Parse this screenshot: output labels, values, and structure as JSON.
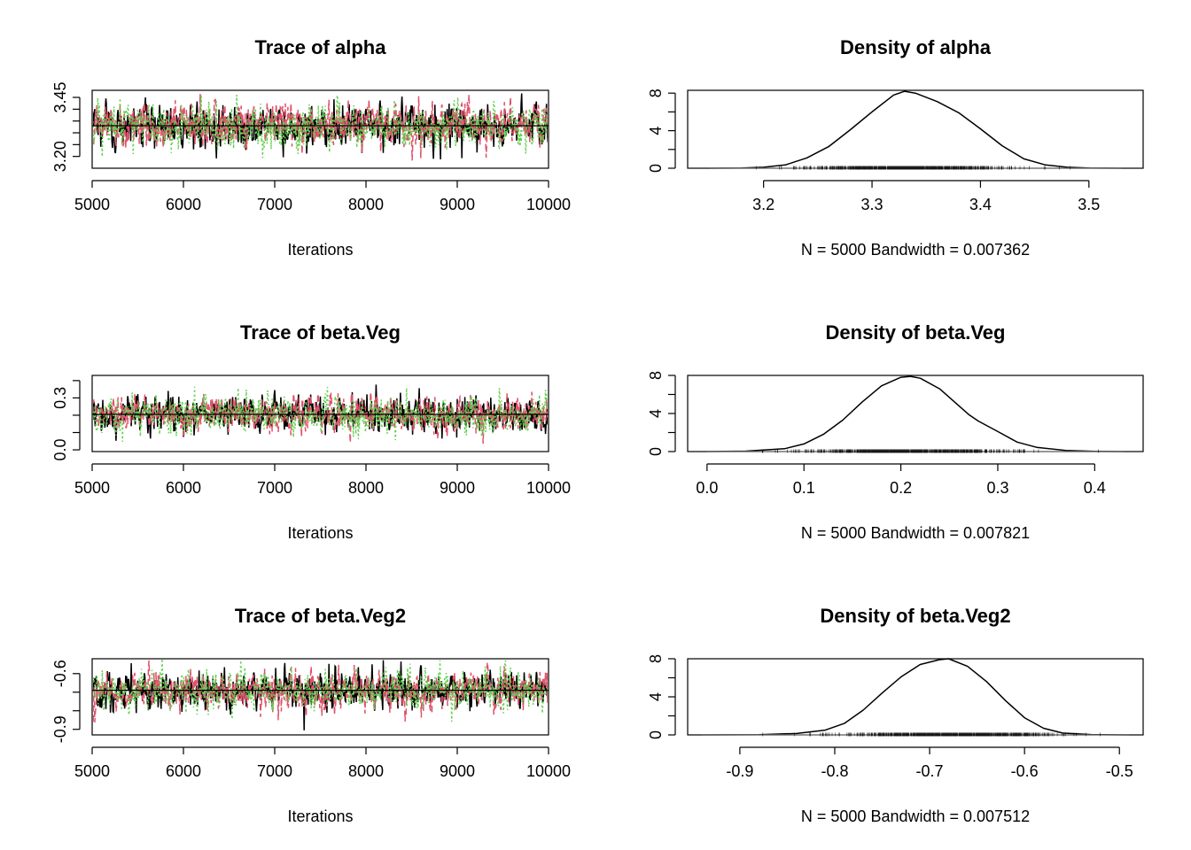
{
  "colors": {
    "chain1": "#000000",
    "chain2": "#DF536B",
    "chain3": "#61D04F",
    "frame": "#000000",
    "rug": "#000000"
  },
  "chart_data": [
    {
      "type": "line",
      "kind": "trace",
      "title": "Trace of alpha",
      "xlabel": "Iterations",
      "xlim": [
        5000,
        10000
      ],
      "ylim": [
        3.15,
        3.48
      ],
      "xticks": [
        "5000",
        "6000",
        "7000",
        "8000",
        "9000",
        "10000"
      ],
      "xtick_values": [
        5000,
        6000,
        7000,
        8000,
        9000,
        10000
      ],
      "yticks": [
        "3.20",
        "3.45"
      ],
      "ytick_values": [
        3.2,
        3.45
      ],
      "yminor_values": [
        3.25,
        3.3,
        3.35,
        3.4
      ],
      "series": [
        {
          "chain": 1,
          "mean": 3.33,
          "sd": 0.045
        },
        {
          "chain": 2,
          "mean": 3.33,
          "sd": 0.045
        },
        {
          "chain": 3,
          "mean": 3.33,
          "sd": 0.045
        }
      ],
      "mean_line": 3.33
    },
    {
      "type": "line",
      "kind": "density",
      "title": "Density of alpha",
      "xlabel": "N = 5000   Bandwidth = 0.007362",
      "xlim": [
        3.13,
        3.55
      ],
      "ylim": [
        0,
        8.3
      ],
      "xticks": [
        "3.2",
        "3.3",
        "3.4",
        "3.5"
      ],
      "xtick_values": [
        3.2,
        3.3,
        3.4,
        3.5
      ],
      "yticks": [
        "0",
        "4",
        "8"
      ],
      "ytick_values": [
        0,
        4,
        8
      ],
      "yminor_values": [
        2,
        6
      ],
      "curve": {
        "x": [
          3.15,
          3.18,
          3.2,
          3.22,
          3.24,
          3.26,
          3.28,
          3.3,
          3.32,
          3.33,
          3.34,
          3.36,
          3.38,
          3.4,
          3.42,
          3.44,
          3.46,
          3.48,
          3.5,
          3.53
        ],
        "y": [
          0,
          0.02,
          0.1,
          0.35,
          1.1,
          2.3,
          4.1,
          6.0,
          7.8,
          8.2,
          8.0,
          7.1,
          5.9,
          4.2,
          2.4,
          1.0,
          0.35,
          0.1,
          0.02,
          0
        ]
      },
      "rug_range": [
        3.15,
        3.53
      ]
    },
    {
      "type": "line",
      "kind": "trace",
      "title": "Trace of beta.Veg",
      "xlabel": "Iterations",
      "xlim": [
        5000,
        10000
      ],
      "ylim": [
        -0.01,
        0.43
      ],
      "xticks": [
        "5000",
        "6000",
        "7000",
        "8000",
        "9000",
        "10000"
      ],
      "xtick_values": [
        5000,
        6000,
        7000,
        8000,
        9000,
        10000
      ],
      "yticks": [
        "0.0",
        "0.3"
      ],
      "ytick_values": [
        0.0,
        0.3
      ],
      "yminor_values": [
        0.1,
        0.2,
        0.4
      ],
      "series": [
        {
          "chain": 1,
          "mean": 0.205,
          "sd": 0.05
        },
        {
          "chain": 2,
          "mean": 0.205,
          "sd": 0.05
        },
        {
          "chain": 3,
          "mean": 0.205,
          "sd": 0.05
        }
      ],
      "mean_line": 0.205
    },
    {
      "type": "line",
      "kind": "density",
      "title": "Density of beta.Veg",
      "xlabel": "N = 5000   Bandwidth = 0.007821",
      "xlim": [
        -0.02,
        0.45
      ],
      "ylim": [
        0,
        8.0
      ],
      "xticks": [
        "0.0",
        "0.1",
        "0.2",
        "0.3",
        "0.4"
      ],
      "xtick_values": [
        0.0,
        0.1,
        0.2,
        0.3,
        0.4
      ],
      "yticks": [
        "0",
        "4",
        "8"
      ],
      "ytick_values": [
        0,
        4,
        8
      ],
      "yminor_values": [
        2,
        6
      ],
      "curve": {
        "x": [
          0.0,
          0.04,
          0.08,
          0.1,
          0.12,
          0.14,
          0.16,
          0.18,
          0.2,
          0.21,
          0.22,
          0.24,
          0.26,
          0.27,
          0.28,
          0.3,
          0.32,
          0.34,
          0.37,
          0.4,
          0.43
        ],
        "y": [
          0,
          0.05,
          0.3,
          0.8,
          1.8,
          3.3,
          5.2,
          6.9,
          7.8,
          7.9,
          7.7,
          6.6,
          4.8,
          3.9,
          3.2,
          2.1,
          1.0,
          0.45,
          0.12,
          0.03,
          0
        ]
      },
      "rug_range": [
        0.0,
        0.43
      ]
    },
    {
      "type": "line",
      "kind": "trace",
      "title": "Trace of beta.Veg2",
      "xlabel": "Iterations",
      "xlim": [
        5000,
        10000
      ],
      "ylim": [
        -0.93,
        -0.52
      ],
      "xticks": [
        "5000",
        "6000",
        "7000",
        "8000",
        "9000",
        "10000"
      ],
      "xtick_values": [
        5000,
        6000,
        7000,
        8000,
        9000,
        10000
      ],
      "yticks": [
        "-0.9",
        "-0.6"
      ],
      "ytick_values": [
        -0.9,
        -0.6
      ],
      "yminor_values": [
        -0.8,
        -0.7
      ],
      "series": [
        {
          "chain": 1,
          "mean": -0.69,
          "sd": 0.05
        },
        {
          "chain": 2,
          "mean": -0.69,
          "sd": 0.05
        },
        {
          "chain": 3,
          "mean": -0.69,
          "sd": 0.05
        }
      ],
      "mean_line": -0.69
    },
    {
      "type": "line",
      "kind": "density",
      "title": "Density of beta.Veg2",
      "xlabel": "N = 5000   Bandwidth = 0.007512",
      "xlim": [
        -0.955,
        -0.475
      ],
      "ylim": [
        0,
        8.0
      ],
      "xticks": [
        "-0.9",
        "-0.8",
        "-0.7",
        "-0.6",
        "-0.5"
      ],
      "xtick_values": [
        -0.9,
        -0.8,
        -0.7,
        -0.6,
        -0.5
      ],
      "yticks": [
        "0",
        "4",
        "8"
      ],
      "ytick_values": [
        0,
        4,
        8
      ],
      "yminor_values": [
        2,
        6
      ],
      "curve": {
        "x": [
          -0.94,
          -0.88,
          -0.84,
          -0.81,
          -0.79,
          -0.77,
          -0.75,
          -0.73,
          -0.71,
          -0.69,
          -0.68,
          -0.66,
          -0.64,
          -0.62,
          -0.6,
          -0.58,
          -0.56,
          -0.53,
          -0.49
        ],
        "y": [
          0,
          0.03,
          0.15,
          0.5,
          1.2,
          2.6,
          4.4,
          6.1,
          7.4,
          7.9,
          8.0,
          7.2,
          5.6,
          3.6,
          1.8,
          0.7,
          0.2,
          0.04,
          0
        ]
      },
      "rug_range": [
        -0.94,
        -0.49
      ]
    }
  ]
}
